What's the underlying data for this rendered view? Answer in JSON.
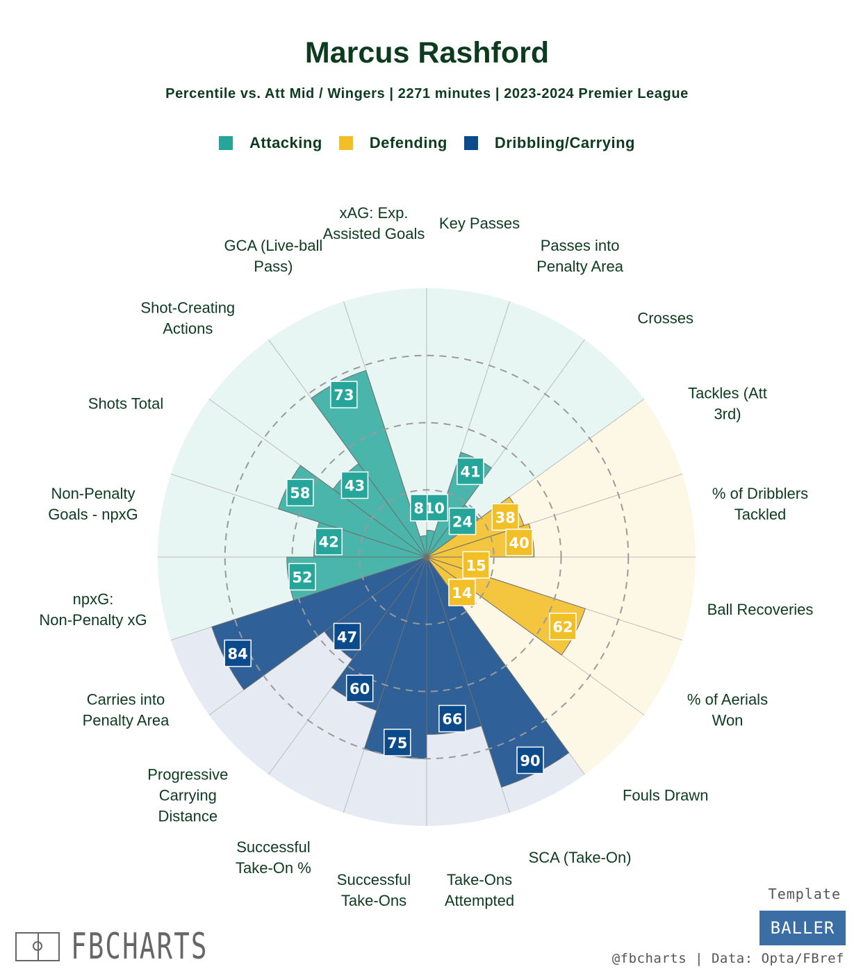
{
  "header": {
    "title": "Marcus Rashford",
    "subtitle": "Percentile vs. Att Mid / Wingers | 2271 minutes | 2023-2024 Premier League"
  },
  "legend": [
    {
      "label": "Attacking",
      "color": "#26a69a"
    },
    {
      "label": "Defending",
      "color": "#f2bf26"
    },
    {
      "label": "Dribbling/Carrying",
      "color": "#0b4a8b"
    }
  ],
  "chart_data": {
    "type": "polar-bar",
    "title": "Marcus Rashford",
    "subtitle": "Percentile vs. Att Mid / Wingers | 2271 minutes | 2023-2024 Premier League",
    "rlim": [
      0,
      100
    ],
    "gridlines": [
      25,
      50,
      75
    ],
    "categories": [
      {
        "label": "Key Passes",
        "value": 10,
        "group": "Attacking"
      },
      {
        "label": "Passes into Penalty Area",
        "value": 41,
        "group": "Attacking"
      },
      {
        "label": "Crosses",
        "value": 24,
        "group": "Attacking"
      },
      {
        "label": "Tackles (Att 3rd)",
        "value": 38,
        "group": "Defending"
      },
      {
        "label": "% of Dribblers Tackled",
        "value": 40,
        "group": "Defending"
      },
      {
        "label": "Ball Recoveries",
        "value": 15,
        "group": "Defending"
      },
      {
        "label": "% of Aerials Won",
        "value": 62,
        "group": "Defending"
      },
      {
        "label": "Fouls Drawn",
        "value": 14,
        "group": "Defending"
      },
      {
        "label": "SCA (Take-On)",
        "value": 90,
        "group": "Dribbling/Carrying"
      },
      {
        "label": "Take-Ons Attempted",
        "value": 66,
        "group": "Dribbling/Carrying"
      },
      {
        "label": "Successful Take-Ons",
        "value": 75,
        "group": "Dribbling/Carrying"
      },
      {
        "label": "Successful Take-On %",
        "value": 60,
        "group": "Dribbling/Carrying"
      },
      {
        "label": "Progressive Carrying Distance",
        "value": 47,
        "group": "Dribbling/Carrying"
      },
      {
        "label": "Carries into Penalty Area",
        "value": 84,
        "group": "Dribbling/Carrying"
      },
      {
        "label": "npxG: Non-Penalty xG",
        "value": 52,
        "group": "Attacking"
      },
      {
        "label": "Non-Penalty Goals - npxG",
        "value": 42,
        "group": "Attacking"
      },
      {
        "label": "Shots Total",
        "value": 58,
        "group": "Attacking"
      },
      {
        "label": "Shot-Creating Actions",
        "value": 43,
        "group": "Attacking"
      },
      {
        "label": "GCA (Live-ball Pass)",
        "value": 73,
        "group": "Attacking"
      },
      {
        "label": "xAG: Exp. Assisted Goals",
        "value": 8,
        "group": "Attacking"
      }
    ]
  },
  "footer": {
    "brand": "FBCHARTS",
    "template_label": "Template",
    "template_name": "BALLER",
    "credit": "@fbcharts | Data: Opta/FBref"
  }
}
